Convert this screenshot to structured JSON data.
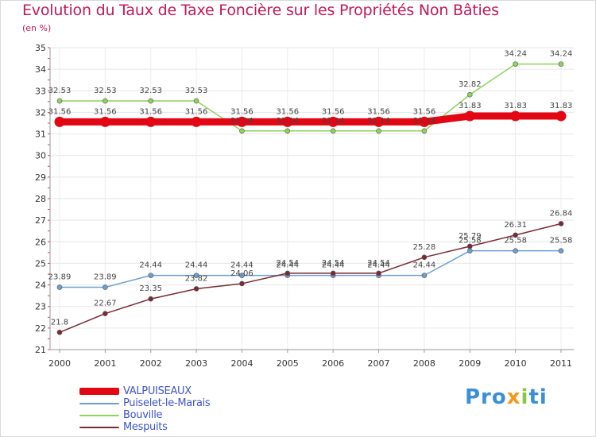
{
  "title": "Evolution du Taux de Taxe Foncière sur les Propriétés Non Bâties",
  "unit": "(en %)",
  "logo": {
    "part1": "Pro",
    "part2": "x",
    "part3": "i",
    "part4": "ti"
  },
  "chart_data": {
    "type": "line",
    "title": "Evolution du Taux de Taxe Foncière sur les Propriétés Non Bâties",
    "ylabel": "(en %)",
    "xlabel": "",
    "categories": [
      "2000",
      "2001",
      "2002",
      "2003",
      "2004",
      "2005",
      "2006",
      "2007",
      "2008",
      "2009",
      "2010",
      "2011"
    ],
    "ylim": [
      21,
      35
    ],
    "yticks": [
      21,
      22,
      23,
      24,
      25,
      26,
      27,
      28,
      29,
      30,
      31,
      32,
      33,
      34,
      35
    ],
    "grid": true,
    "series": [
      {
        "name": "VALPUISEAUX",
        "color": "#e30613",
        "width": 9,
        "values": [
          31.56,
          31.56,
          31.56,
          31.56,
          31.56,
          31.56,
          31.56,
          31.56,
          31.56,
          31.83,
          31.83,
          31.83
        ],
        "labels": [
          "31.56",
          "31.56",
          "31.56",
          "31.56",
          "31.56",
          "31.56",
          "31.56",
          "31.56",
          "31.56",
          "31.83",
          "31.83",
          "31.83"
        ]
      },
      {
        "name": "Puiselet-le-Marais",
        "color": "#6c9fd0",
        "width": 1.5,
        "values": [
          23.89,
          23.89,
          24.44,
          24.44,
          24.44,
          24.44,
          24.44,
          24.44,
          24.44,
          25.58,
          25.58,
          25.58
        ],
        "labels": [
          "23.89",
          "23.89",
          "24.44",
          "24.44",
          "24.44",
          "24.44",
          "24.44",
          "24.44",
          "24.44",
          "25.58",
          "25.58",
          "25.58"
        ]
      },
      {
        "name": "Bouville",
        "color": "#8cd45a",
        "width": 1.5,
        "values": [
          32.53,
          32.53,
          32.53,
          32.53,
          31.14,
          31.14,
          31.14,
          31.14,
          31.14,
          32.82,
          34.24,
          34.24
        ],
        "labels": [
          "32.53",
          "32.53",
          "32.53",
          "32.53",
          "31.14",
          "31.14",
          "31.14",
          "31.14",
          "31.14",
          "32.82",
          "34.24",
          "34.24"
        ]
      },
      {
        "name": "Mespuits",
        "color": "#7b2a35",
        "width": 1.5,
        "values": [
          21.8,
          22.67,
          23.35,
          23.82,
          24.06,
          24.54,
          24.54,
          24.54,
          25.28,
          25.79,
          26.31,
          26.84
        ],
        "labels": [
          "21.8",
          "22.67",
          "23.35",
          "23.82",
          "24.06",
          "24.54",
          "24.54",
          "24.54",
          "25.28",
          "25.79",
          "26.31",
          "26.84"
        ]
      }
    ]
  },
  "legend": [
    {
      "label": "VALPUISEAUX",
      "color": "#e30613"
    },
    {
      "label": "Puiselet-le-Marais",
      "color": "#6c9fd0"
    },
    {
      "label": "Bouville",
      "color": "#8cd45a"
    },
    {
      "label": "Mespuits",
      "color": "#7b2a35"
    }
  ]
}
